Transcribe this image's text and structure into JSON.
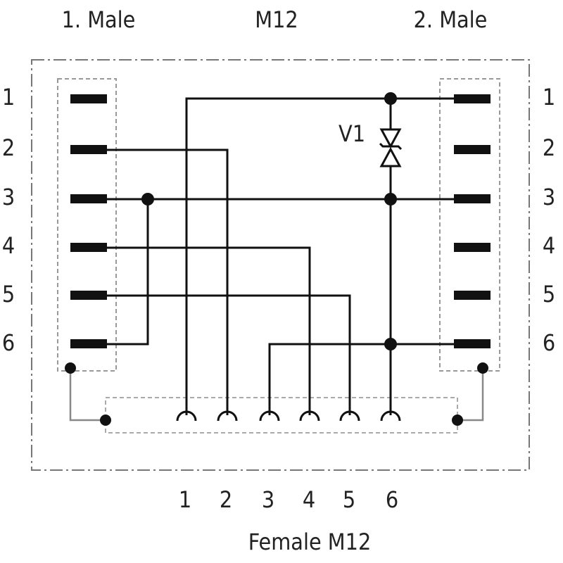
{
  "header": {
    "left": "1. Male",
    "center": "M12",
    "right": "2. Male"
  },
  "left_pins": [
    "1",
    "2",
    "3",
    "4",
    "5",
    "6"
  ],
  "right_pins": [
    "1",
    "2",
    "3",
    "4",
    "5",
    "6"
  ],
  "bottom_pins": [
    "1",
    "2",
    "3",
    "4",
    "5",
    "6"
  ],
  "component": "V1",
  "footer": "Female M12"
}
